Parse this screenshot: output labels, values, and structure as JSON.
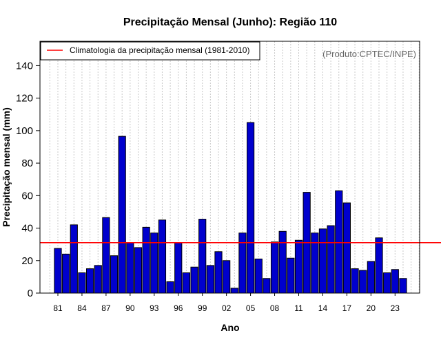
{
  "chart_data": {
    "type": "bar",
    "title": "Precipitação Mensal (Junho): Região 110",
    "xlabel": "Ano",
    "ylabel": "Precipitação mensal (mm)",
    "ylim": [
      0,
      155
    ],
    "yticks": [
      0,
      20,
      40,
      60,
      80,
      100,
      120,
      140
    ],
    "grid": "vertical dotted",
    "credit": "(Produto:CPTEC/INPE)",
    "categories": [
      "81",
      "82",
      "83",
      "84",
      "85",
      "86",
      "87",
      "88",
      "89",
      "90",
      "91",
      "92",
      "93",
      "94",
      "95",
      "96",
      "97",
      "98",
      "99",
      "00",
      "01",
      "02",
      "03",
      "04",
      "05",
      "06",
      "07",
      "08",
      "09",
      "10",
      "11",
      "12",
      "13",
      "14",
      "15",
      "16",
      "17",
      "18",
      "19",
      "20",
      "21",
      "22",
      "23",
      "24"
    ],
    "tick_labels": [
      "81",
      "84",
      "87",
      "90",
      "93",
      "96",
      "99",
      "02",
      "05",
      "08",
      "11",
      "14",
      "17",
      "20",
      "23"
    ],
    "values": [
      27.5,
      24,
      42,
      12.5,
      15,
      17,
      46.5,
      23,
      96.5,
      31,
      28,
      40.5,
      37,
      45,
      7,
      31,
      12.5,
      16,
      45.5,
      17,
      25.5,
      20,
      3,
      37,
      105,
      21,
      9,
      31.5,
      38,
      21.5,
      32.5,
      62,
      37,
      39.5,
      41.5,
      63,
      55.5,
      15,
      14,
      19.5,
      34,
      12.5,
      14.5,
      9
    ],
    "bar_color": "#0000CD",
    "climatology": {
      "label": "Climatologia da precipitação mensal (1981-2010)",
      "value": 31,
      "color": "#FF0000"
    },
    "legend": "top-left"
  }
}
